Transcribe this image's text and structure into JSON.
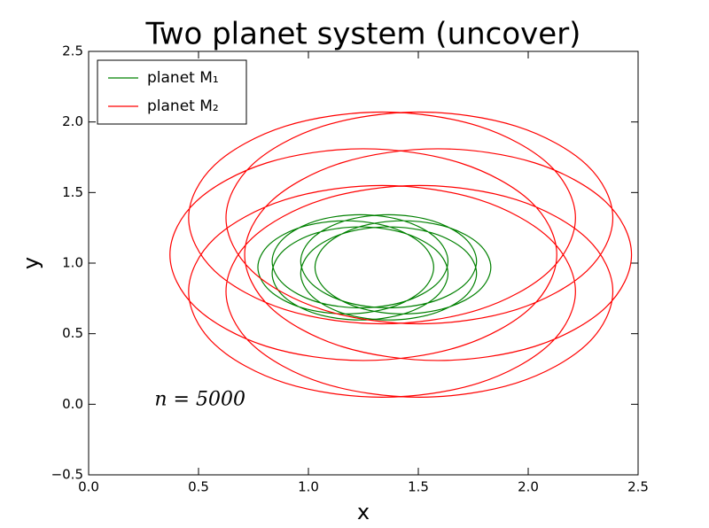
{
  "chart_data": {
    "type": "line",
    "title": "Two planet system (uncover)",
    "x_label": "x",
    "y_label": "y",
    "annotation": "n = 5000",
    "xlim": [
      0,
      2.5
    ],
    "ylim": [
      -0.5,
      2.5
    ],
    "xticks": [
      {
        "value": 0,
        "label": "0.0"
      },
      {
        "value": 0.5,
        "label": "0.5"
      },
      {
        "value": 1,
        "label": "1.0"
      },
      {
        "value": 1.5,
        "label": "1.5"
      },
      {
        "value": 2,
        "label": "2.0"
      },
      {
        "value": 2.5,
        "label": "2.5"
      }
    ],
    "yticks": [
      {
        "value": -0.5,
        "label": "−0.5"
      },
      {
        "value": 0,
        "label": "0.0"
      },
      {
        "value": 0.5,
        "label": "0.5"
      },
      {
        "value": 1,
        "label": "1.0"
      },
      {
        "value": 1.5,
        "label": "1.5"
      },
      {
        "value": 2,
        "label": "2.0"
      },
      {
        "value": 2.5,
        "label": "2.5"
      }
    ],
    "grid": false,
    "legend": "upper left",
    "series": [
      {
        "name": "planet M₁",
        "color": "#008000",
        "x": [
          1.83,
          1.776,
          1.63,
          1.43,
          1.23,
          1.084,
          1.03,
          1.084,
          1.23,
          1.43,
          1.63,
          1.776,
          1.83,
          null,
          1.765,
          1.711,
          1.565,
          1.365,
          1.165,
          1.019,
          0.965,
          1.019,
          1.165,
          1.365,
          1.565,
          1.711,
          1.765,
          null,
          1.635,
          1.581,
          1.435,
          1.235,
          1.035,
          0.889,
          0.835,
          0.889,
          1.035,
          1.235,
          1.435,
          1.581,
          1.635,
          null,
          1.57,
          1.516,
          1.37,
          1.17,
          0.97,
          0.824,
          0.77,
          0.824,
          0.97,
          1.17,
          1.37,
          1.516,
          1.57,
          null,
          1.635,
          1.581,
          1.435,
          1.235,
          1.035,
          0.889,
          0.835,
          0.889,
          1.035,
          1.235,
          1.435,
          1.581,
          1.635,
          null,
          1.765,
          1.711,
          1.565,
          1.365,
          1.165,
          1.019,
          0.965,
          1.019,
          1.165,
          1.365,
          1.565,
          1.711,
          1.765
        ],
        "values": [
          0.97,
          1.135,
          1.256,
          1.3,
          1.256,
          1.135,
          0.97,
          0.805,
          0.684,
          0.64,
          0.684,
          0.805,
          0.97,
          null,
          1.013,
          1.178,
          1.299,
          1.343,
          1.299,
          1.178,
          1.013,
          0.848,
          0.727,
          0.683,
          0.727,
          0.848,
          1.013,
          null,
          1.013,
          1.178,
          1.299,
          1.343,
          1.299,
          1.178,
          1.013,
          0.848,
          0.727,
          0.683,
          0.727,
          0.848,
          1.013,
          null,
          0.97,
          1.135,
          1.256,
          1.3,
          1.256,
          1.135,
          0.97,
          0.805,
          0.684,
          0.64,
          0.684,
          0.805,
          0.97,
          null,
          0.927,
          1.092,
          1.213,
          1.257,
          1.213,
          1.092,
          0.927,
          0.762,
          0.641,
          0.597,
          0.641,
          0.762,
          0.927,
          null,
          0.927,
          1.092,
          1.213,
          1.257,
          1.213,
          1.092,
          0.927,
          0.762,
          0.641,
          0.597,
          0.641,
          0.762,
          0.927
        ]
      },
      {
        "name": "planet M₂",
        "color": "#ff0000",
        "x": [
          2.47,
          2.352,
          2.03,
          1.59,
          1.15,
          0.828,
          0.71,
          0.828,
          1.15,
          1.59,
          2.03,
          2.352,
          2.47,
          null,
          2.385,
          2.267,
          1.945,
          1.505,
          1.065,
          0.743,
          0.625,
          0.743,
          1.065,
          1.505,
          1.945,
          2.267,
          2.385,
          null,
          2.215,
          2.097,
          1.775,
          1.335,
          0.895,
          0.573,
          0.455,
          0.573,
          0.895,
          1.335,
          1.775,
          2.097,
          2.215,
          null,
          2.13,
          2.012,
          1.69,
          1.25,
          0.81,
          0.488,
          0.37,
          0.488,
          0.81,
          1.25,
          1.69,
          2.012,
          2.13,
          null,
          2.215,
          2.097,
          1.775,
          1.335,
          0.895,
          0.573,
          0.455,
          0.573,
          0.895,
          1.335,
          1.775,
          2.097,
          2.215,
          null,
          2.385,
          2.267,
          1.945,
          1.505,
          1.065,
          0.743,
          0.625,
          0.743,
          1.065,
          1.505,
          1.945,
          2.267,
          2.385
        ],
        "values": [
          1.06,
          1.435,
          1.71,
          1.81,
          1.71,
          1.435,
          1.06,
          0.685,
          0.41,
          0.31,
          0.41,
          0.685,
          1.06,
          null,
          1.32,
          1.695,
          1.97,
          2.07,
          1.97,
          1.695,
          1.32,
          0.945,
          0.67,
          0.57,
          0.67,
          0.945,
          1.32,
          null,
          1.32,
          1.695,
          1.97,
          2.07,
          1.97,
          1.695,
          1.32,
          0.945,
          0.67,
          0.57,
          0.67,
          0.945,
          1.32,
          null,
          1.06,
          1.435,
          1.71,
          1.81,
          1.71,
          1.435,
          1.06,
          0.685,
          0.41,
          0.31,
          0.41,
          0.685,
          1.06,
          null,
          0.8,
          1.175,
          1.45,
          1.55,
          1.45,
          1.175,
          0.8,
          0.425,
          0.15,
          0.05,
          0.15,
          0.425,
          0.8,
          null,
          0.8,
          1.175,
          1.45,
          1.55,
          1.45,
          1.175,
          0.8,
          0.425,
          0.15,
          0.05,
          0.15,
          0.425,
          0.8
        ]
      }
    ]
  }
}
